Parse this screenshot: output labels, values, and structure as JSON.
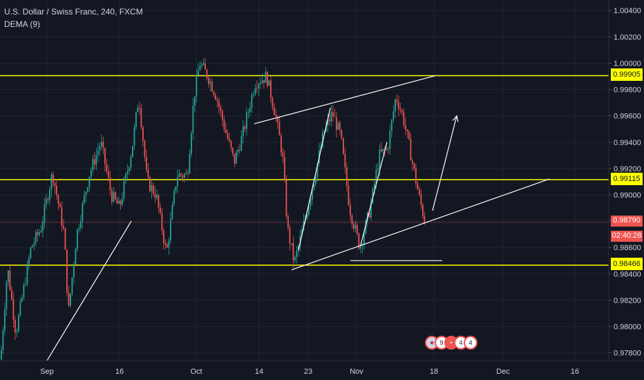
{
  "header": {
    "symbol": "U.S. Dollar / Swiss Franc, 240, FXCM",
    "indicator": "DEMA (9)"
  },
  "badges": {
    "level_high": "0.99905",
    "level_mid": "0.99115",
    "current_price": "0.98790",
    "countdown": "02:40:28",
    "level_low": "0.98466"
  },
  "events": [
    "9",
    "4",
    "4"
  ],
  "colors": {
    "background": "#131722",
    "up": "#26a69a",
    "down": "#ef5350",
    "levels": "#ffff00",
    "drawings": "#ffffff",
    "grid": "#1f2430"
  },
  "chart_data": {
    "type": "candlestick",
    "y_ticks": [
      "1.00400",
      "1.00200",
      "1.00000",
      "0.99800",
      "0.99600",
      "0.99400",
      "0.99200",
      "0.99000",
      "0.98800",
      "0.98600",
      "0.98400",
      "0.98200",
      "0.98000",
      "0.97800"
    ],
    "ylim": [
      0.9774,
      1.0048
    ],
    "x_ticks": [
      "Sep",
      "16",
      "Oct",
      "14",
      "23",
      "Nov",
      "18",
      "Dec",
      "16"
    ],
    "horizontal_levels": [
      0.99905,
      0.99115,
      0.98466
    ],
    "current_price": 0.9879,
    "price_path": [
      [
        0,
        0.9775
      ],
      [
        10,
        0.9845
      ],
      [
        22,
        0.9795
      ],
      [
        44,
        0.986
      ],
      [
        58,
        0.9874
      ],
      [
        75,
        0.9917
      ],
      [
        92,
        0.987
      ],
      [
        98,
        0.981
      ],
      [
        110,
        0.987
      ],
      [
        128,
        0.9915
      ],
      [
        145,
        0.994
      ],
      [
        160,
        0.99
      ],
      [
        172,
        0.989
      ],
      [
        190,
        0.9935
      ],
      [
        200,
        0.9975
      ],
      [
        212,
        0.991
      ],
      [
        225,
        0.99
      ],
      [
        240,
        0.9855
      ],
      [
        255,
        0.9915
      ],
      [
        270,
        0.9915
      ],
      [
        280,
        0.9975
      ],
      [
        288,
        1.0
      ],
      [
        300,
        0.999
      ],
      [
        312,
        0.9975
      ],
      [
        322,
        0.9955
      ],
      [
        338,
        0.9925
      ],
      [
        350,
        0.9945
      ],
      [
        368,
        0.9985
      ],
      [
        385,
        0.999
      ],
      [
        398,
        0.996
      ],
      [
        408,
        0.993
      ],
      [
        415,
        0.9875
      ],
      [
        425,
        0.9848
      ],
      [
        440,
        0.988
      ],
      [
        455,
        0.9915
      ],
      [
        468,
        0.9948
      ],
      [
        480,
        0.9962
      ],
      [
        492,
        0.9945
      ],
      [
        505,
        0.989
      ],
      [
        520,
        0.986
      ],
      [
        535,
        0.989
      ],
      [
        548,
        0.993
      ],
      [
        560,
        0.9935
      ],
      [
        572,
        0.9975
      ],
      [
        582,
        0.996
      ],
      [
        592,
        0.9935
      ],
      [
        605,
        0.99
      ],
      [
        615,
        0.9877
      ]
    ],
    "drawings": [
      {
        "kind": "trendline",
        "from": [
          68,
          0.9774
        ],
        "to": [
          190,
          0.988
        ]
      },
      {
        "kind": "trendline",
        "from": [
          368,
          0.9954
        ],
        "to": [
          630,
          0.99905
        ]
      },
      {
        "kind": "trendline",
        "from": [
          422,
          0.9843
        ],
        "to": [
          795,
          0.9912
        ]
      },
      {
        "kind": "trendline",
        "from": [
          432,
          0.9858
        ],
        "to": [
          478,
          0.9966
        ]
      },
      {
        "kind": "trendline",
        "from": [
          522,
          0.9862
        ],
        "to": [
          560,
          0.994
        ]
      },
      {
        "kind": "horizontal_segment",
        "from": [
          507,
          0.985
        ],
        "to": [
          640,
          0.985
        ]
      },
      {
        "kind": "arrow",
        "from": [
          626,
          0.9888
        ],
        "to": [
          661,
          0.996
        ]
      }
    ]
  }
}
